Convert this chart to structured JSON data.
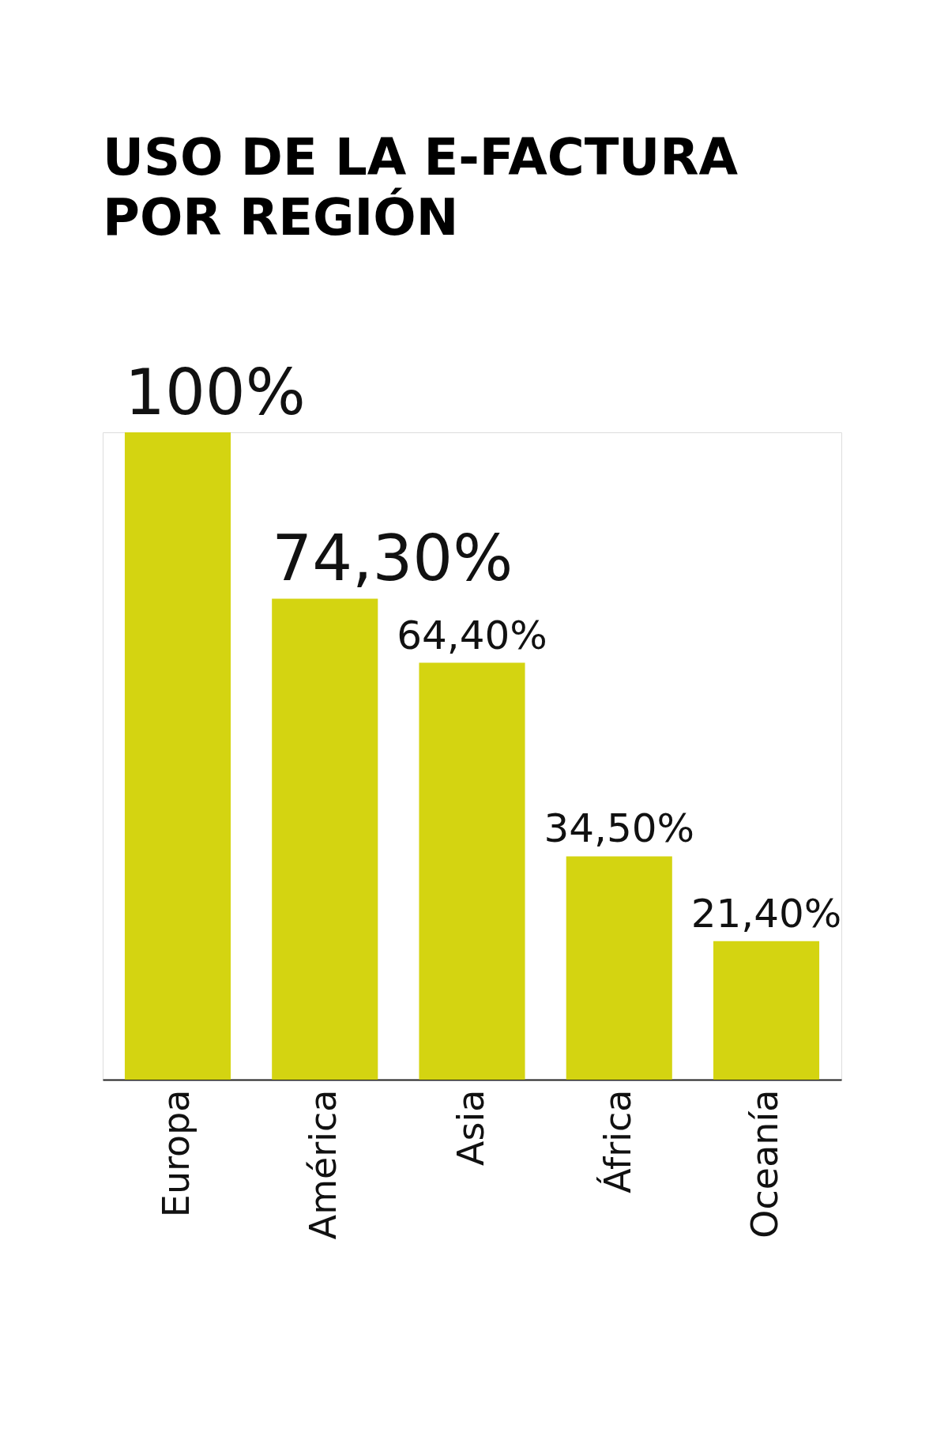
{
  "chart_data": {
    "type": "bar",
    "title": [
      "USO DE LA E-FACTURA",
      "POR REGIÓN"
    ],
    "categories": [
      "Europa",
      "América",
      "Asia",
      "África",
      "Oceanía"
    ],
    "values": [
      100,
      74.3,
      64.4,
      34.5,
      21.4
    ],
    "value_labels": [
      "100%",
      "74,30%",
      "64,40%",
      "34,50%",
      "21,40%"
    ],
    "color": "#d4d411"
  }
}
